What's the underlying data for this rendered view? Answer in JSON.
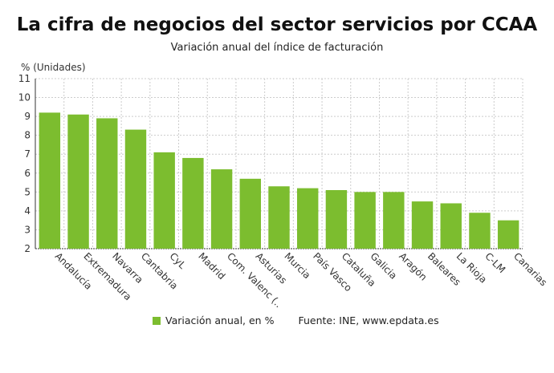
{
  "chart_data": {
    "type": "bar",
    "title": "La cifra de negocios del sector servicios por CCAA",
    "subtitle": "Variación anual del índice de facturación",
    "ylabel": "% (Unidades)",
    "xlabel": "",
    "ylim": [
      2,
      11
    ],
    "yticks": [
      2,
      3,
      4,
      5,
      6,
      7,
      8,
      9,
      10,
      11
    ],
    "grid": true,
    "legend_position": "bottom",
    "categories": [
      "Andalucía",
      "Extremadura",
      "Navarra",
      "Cantabria",
      "CyL",
      "Madrid",
      "Com. Valenc (..",
      "Asturias",
      "Murcia",
      "País Vasco",
      "Cataluña",
      "Galicia",
      "Aragón",
      "Baleares",
      "La Rioja",
      "C-LM",
      "Canarias"
    ],
    "series": [
      {
        "name": "Variación anual, en %",
        "color": "#7cbd2f",
        "values": [
          9.2,
          9.1,
          8.9,
          8.3,
          7.1,
          6.8,
          6.2,
          5.7,
          5.3,
          5.2,
          5.1,
          5.0,
          5.0,
          4.5,
          4.4,
          3.9,
          3.5
        ]
      }
    ],
    "source": "Fuente: INE, www.epdata.es"
  }
}
